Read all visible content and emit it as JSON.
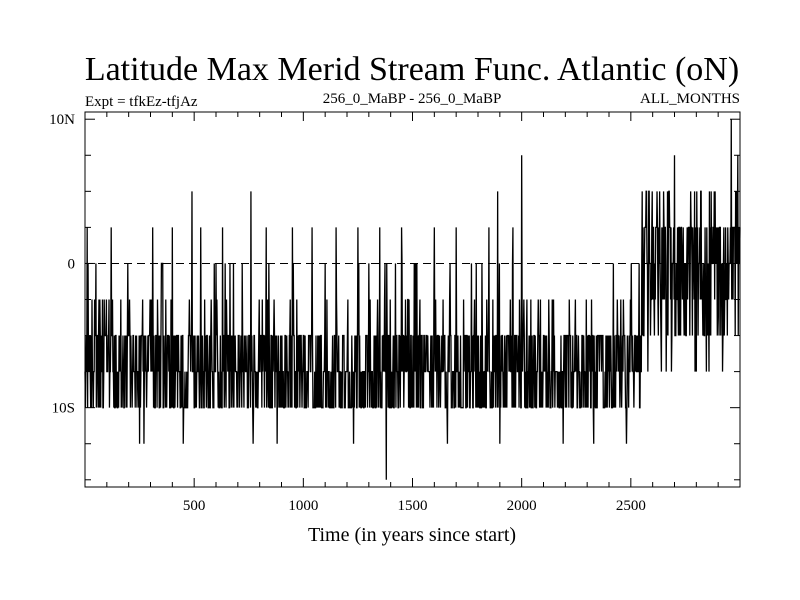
{
  "chart_data": {
    "type": "line",
    "title": "Latitude Max Merid Stream Func. Atlantic (oN)",
    "subtitle_left": "Expt = tfkEz-tfjAz",
    "subtitle_center": "256_0_MaBP - 256_0_MaBP",
    "subtitle_right": "ALL_MONTHS",
    "xlabel": "Time (in years since start)",
    "ylabel": "",
    "xlim": [
      0,
      3000
    ],
    "ylim": [
      -15.5,
      10.5
    ],
    "x_ticks": [
      500,
      1000,
      1500,
      2000,
      2500
    ],
    "x_tick_labels": [
      "500",
      "1000",
      "1500",
      "2000",
      "2500"
    ],
    "y_ticks": [
      -10,
      0,
      10
    ],
    "y_tick_labels": [
      "10S",
      "0",
      "10N"
    ],
    "zero_line": "dashed",
    "grid": false,
    "series": [
      {
        "regime_1": {
          "x_range": [
            0,
            2550
          ],
          "typical_range": [
            -10,
            -5
          ],
          "median": -7.5
        },
        "regime_2": {
          "x_range": [
            2550,
            3000
          ],
          "typical_range": [
            -5,
            2.5
          ],
          "median": 0
        },
        "extremes": [
          {
            "x": 10,
            "y": 2.5
          },
          {
            "x": 50,
            "y": 0
          },
          {
            "x": 120,
            "y": 2.5
          },
          {
            "x": 180,
            "y": -10
          },
          {
            "x": 250,
            "y": -12.5
          },
          {
            "x": 270,
            "y": -12.5
          },
          {
            "x": 310,
            "y": 2.5
          },
          {
            "x": 350,
            "y": 0
          },
          {
            "x": 400,
            "y": 2.5
          },
          {
            "x": 450,
            "y": -12.5
          },
          {
            "x": 490,
            "y": 5
          },
          {
            "x": 530,
            "y": 2.5
          },
          {
            "x": 600,
            "y": 0
          },
          {
            "x": 630,
            "y": 2.5
          },
          {
            "x": 680,
            "y": 0
          },
          {
            "x": 760,
            "y": 5
          },
          {
            "x": 770,
            "y": -12.5
          },
          {
            "x": 830,
            "y": 2.5
          },
          {
            "x": 880,
            "y": -12.5
          },
          {
            "x": 950,
            "y": 2.5
          },
          {
            "x": 1040,
            "y": 2.5
          },
          {
            "x": 1100,
            "y": 0
          },
          {
            "x": 1150,
            "y": 2.5
          },
          {
            "x": 1230,
            "y": -12.5
          },
          {
            "x": 1250,
            "y": 2.5
          },
          {
            "x": 1300,
            "y": 0
          },
          {
            "x": 1350,
            "y": 2.5
          },
          {
            "x": 1380,
            "y": -15
          },
          {
            "x": 1450,
            "y": 2.5
          },
          {
            "x": 1520,
            "y": 0
          },
          {
            "x": 1600,
            "y": 2.5
          },
          {
            "x": 1660,
            "y": -12.5
          },
          {
            "x": 1700,
            "y": 2.5
          },
          {
            "x": 1770,
            "y": 0
          },
          {
            "x": 1850,
            "y": 2.5
          },
          {
            "x": 1890,
            "y": 5
          },
          {
            "x": 1900,
            "y": -12.5
          },
          {
            "x": 1960,
            "y": 2.5
          },
          {
            "x": 2000,
            "y": 7.5
          },
          {
            "x": 2020,
            "y": -10
          },
          {
            "x": 2080,
            "y": -5
          },
          {
            "x": 2190,
            "y": -12.5
          },
          {
            "x": 2330,
            "y": -12.5
          },
          {
            "x": 2480,
            "y": -12.5
          },
          {
            "x": 2570,
            "y": 5
          },
          {
            "x": 2640,
            "y": -7.5
          },
          {
            "x": 2700,
            "y": 7.5
          },
          {
            "x": 2800,
            "y": -7.5
          },
          {
            "x": 2860,
            "y": 5
          },
          {
            "x": 2920,
            "y": -7.5
          },
          {
            "x": 2960,
            "y": 10
          },
          {
            "x": 2990,
            "y": 7.5
          }
        ]
      }
    ]
  }
}
